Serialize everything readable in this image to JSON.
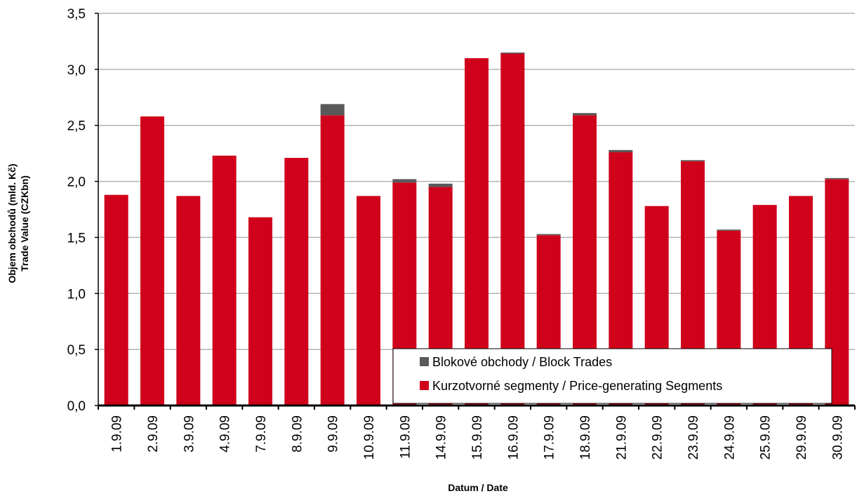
{
  "chart_data": {
    "type": "bar",
    "stacked": true,
    "categories": [
      "1.9.09",
      "2.9.09",
      "3.9.09",
      "4.9.09",
      "7.9.09",
      "8.9.09",
      "9.9.09",
      "10.9.09",
      "11.9.09",
      "14.9.09",
      "15.9.09",
      "16.9.09",
      "17.9.09",
      "18.9.09",
      "21.9.09",
      "22.9.09",
      "23.9.09",
      "24.9.09",
      "25.9.09",
      "29.9.09",
      "30.9.09"
    ],
    "series": [
      {
        "name": "Kurzotvorné segmenty / Price-generating Segments",
        "color": "#d0021b",
        "values": [
          1.88,
          2.58,
          1.87,
          2.23,
          1.68,
          2.21,
          2.59,
          1.87,
          1.99,
          1.95,
          3.1,
          3.14,
          1.52,
          2.59,
          2.26,
          1.78,
          2.18,
          1.56,
          1.79,
          1.87,
          2.02
        ]
      },
      {
        "name": "Blokové obchody / Block Trades",
        "color": "#595959",
        "values": [
          0,
          0,
          0,
          0,
          0,
          0,
          0.1,
          0,
          0.03,
          0.03,
          0,
          0.01,
          0.01,
          0.02,
          0.02,
          0,
          0.01,
          0.01,
          0,
          0,
          0.01
        ]
      }
    ],
    "xlabel": "Datum / Date",
    "ylabel": [
      "Objem obchodů (mld. Kč)",
      "Trade Value (CZKbn)"
    ],
    "ylim": [
      0,
      3.5
    ],
    "yticks": [
      0,
      0.5,
      1.0,
      1.5,
      2.0,
      2.5,
      3.0,
      3.5
    ],
    "ytick_labels": [
      "0,0",
      "0,5",
      "1,0",
      "1,5",
      "2,0",
      "2,5",
      "3,0",
      "3,5"
    ],
    "grid": true,
    "legend_position": "bottom-right"
  }
}
